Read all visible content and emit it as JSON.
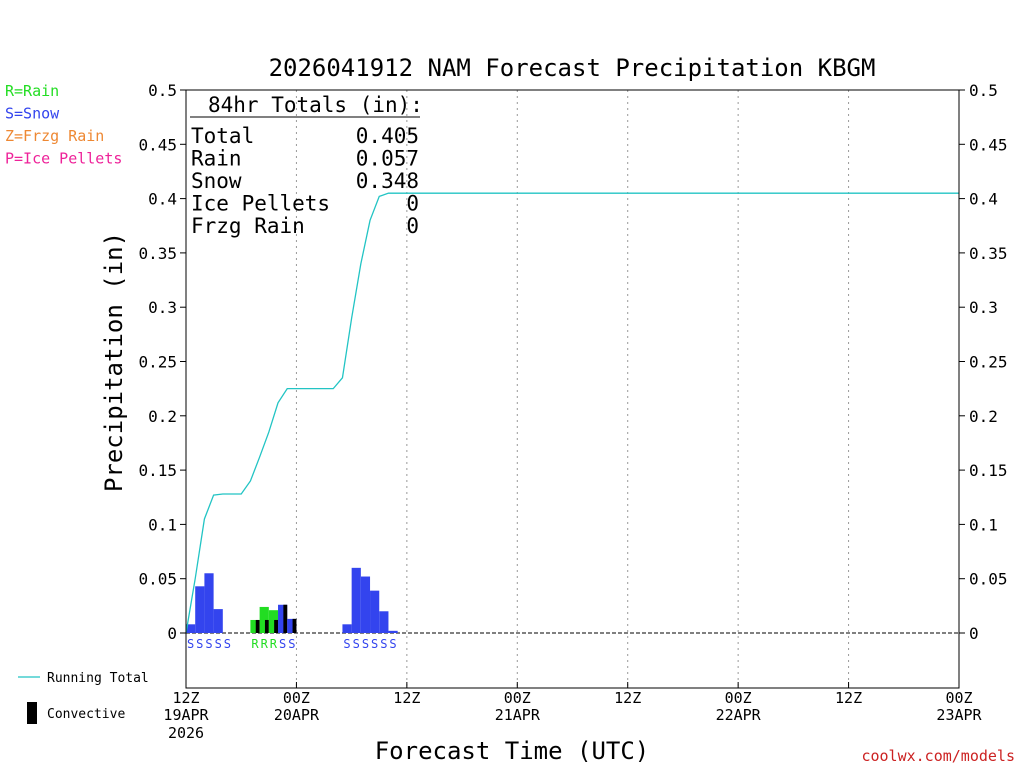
{
  "chart_data": {
    "type": "bar",
    "title": "2026041912 NAM Forecast Precipitation KBGM",
    "xlabel": "Forecast Time (UTC)",
    "ylabel": "Precipitation (in)",
    "ylim": [
      0,
      0.5
    ],
    "y_ticks": [
      "0",
      "0.05",
      "0.1",
      "0.15",
      "0.2",
      "0.25",
      "0.3",
      "0.35",
      "0.4",
      "0.45",
      "0.5"
    ],
    "x_range_hours": [
      0,
      84
    ],
    "x_ticks": [
      {
        "hour": 0,
        "label": "12Z",
        "date": "19APR",
        "year": "2026"
      },
      {
        "hour": 12,
        "label": "00Z",
        "date": "20APR",
        "year": ""
      },
      {
        "hour": 24,
        "label": "12Z",
        "date": "",
        "year": ""
      },
      {
        "hour": 36,
        "label": "00Z",
        "date": "21APR",
        "year": ""
      },
      {
        "hour": 48,
        "label": "12Z",
        "date": "",
        "year": ""
      },
      {
        "hour": 60,
        "label": "00Z",
        "date": "22APR",
        "year": ""
      },
      {
        "hour": 72,
        "label": "12Z",
        "date": "",
        "year": ""
      },
      {
        "hour": 84,
        "label": "00Z",
        "date": "23APR",
        "year": ""
      }
    ],
    "legend_types": [
      {
        "text": "R=Rain",
        "color": "#22dd22"
      },
      {
        "text": "S=Snow",
        "color": "#3344ee"
      },
      {
        "text": "Z=Frzg Rain",
        "color": "#ee8833"
      },
      {
        "text": "P=Ice Pellets",
        "color": "#ee2299"
      }
    ],
    "legend_series": [
      {
        "text": "Running Total",
        "color": "#22c4c4",
        "kind": "line"
      },
      {
        "text": "Convective",
        "color": "#000000",
        "kind": "bar"
      }
    ],
    "totals": {
      "heading": "84hr Totals (in):",
      "rows": [
        {
          "label": "Total",
          "value": "0.405"
        },
        {
          "label": "Rain",
          "value": "0.057"
        },
        {
          "label": "Snow",
          "value": "0.348"
        },
        {
          "label": "Ice Pellets",
          "value": "0"
        },
        {
          "label": "Frzg Rain",
          "value": "0"
        }
      ]
    },
    "series": [
      {
        "name": "Hourly Precipitation",
        "bars": [
          {
            "hour": 0,
            "value": 0.008,
            "type": "S",
            "convective": 0
          },
          {
            "hour": 1,
            "value": 0.043,
            "type": "S",
            "convective": 0
          },
          {
            "hour": 2,
            "value": 0.055,
            "type": "S",
            "convective": 0
          },
          {
            "hour": 3,
            "value": 0.022,
            "type": "S",
            "convective": 0
          },
          {
            "hour": 4,
            "value": 0.0,
            "type": "S",
            "convective": 0
          },
          {
            "hour": 7,
            "value": 0.012,
            "type": "R",
            "convective": 0.012
          },
          {
            "hour": 8,
            "value": 0.024,
            "type": "R",
            "convective": 0.012
          },
          {
            "hour": 9,
            "value": 0.021,
            "type": "R",
            "convective": 0.012
          },
          {
            "hour": 10,
            "value": 0.026,
            "type": "S",
            "convective": 0.026
          },
          {
            "hour": 11,
            "value": 0.013,
            "type": "S",
            "convective": 0.013
          },
          {
            "hour": 17,
            "value": 0.008,
            "type": "S",
            "convective": 0
          },
          {
            "hour": 18,
            "value": 0.06,
            "type": "S",
            "convective": 0
          },
          {
            "hour": 19,
            "value": 0.052,
            "type": "S",
            "convective": 0
          },
          {
            "hour": 20,
            "value": 0.039,
            "type": "S",
            "convective": 0
          },
          {
            "hour": 21,
            "value": 0.02,
            "type": "S",
            "convective": 0
          },
          {
            "hour": 22,
            "value": 0.002,
            "type": "S",
            "convective": 0
          }
        ]
      },
      {
        "name": "Running Total",
        "points": [
          [
            0,
            0.0
          ],
          [
            1,
            0.05
          ],
          [
            2,
            0.105
          ],
          [
            3,
            0.127
          ],
          [
            4,
            0.128
          ],
          [
            5,
            0.128
          ],
          [
            6,
            0.128
          ],
          [
            7,
            0.14
          ],
          [
            8,
            0.162
          ],
          [
            9,
            0.185
          ],
          [
            10,
            0.212
          ],
          [
            11,
            0.225
          ],
          [
            12,
            0.225
          ],
          [
            13,
            0.225
          ],
          [
            14,
            0.225
          ],
          [
            15,
            0.225
          ],
          [
            16,
            0.225
          ],
          [
            17,
            0.235
          ],
          [
            18,
            0.29
          ],
          [
            19,
            0.34
          ],
          [
            20,
            0.38
          ],
          [
            21,
            0.402
          ],
          [
            22,
            0.405
          ],
          [
            84,
            0.405
          ]
        ]
      }
    ],
    "type_labels": "SSSSS RRRSS SSSSSS",
    "credit": "coolwx.com/models"
  }
}
